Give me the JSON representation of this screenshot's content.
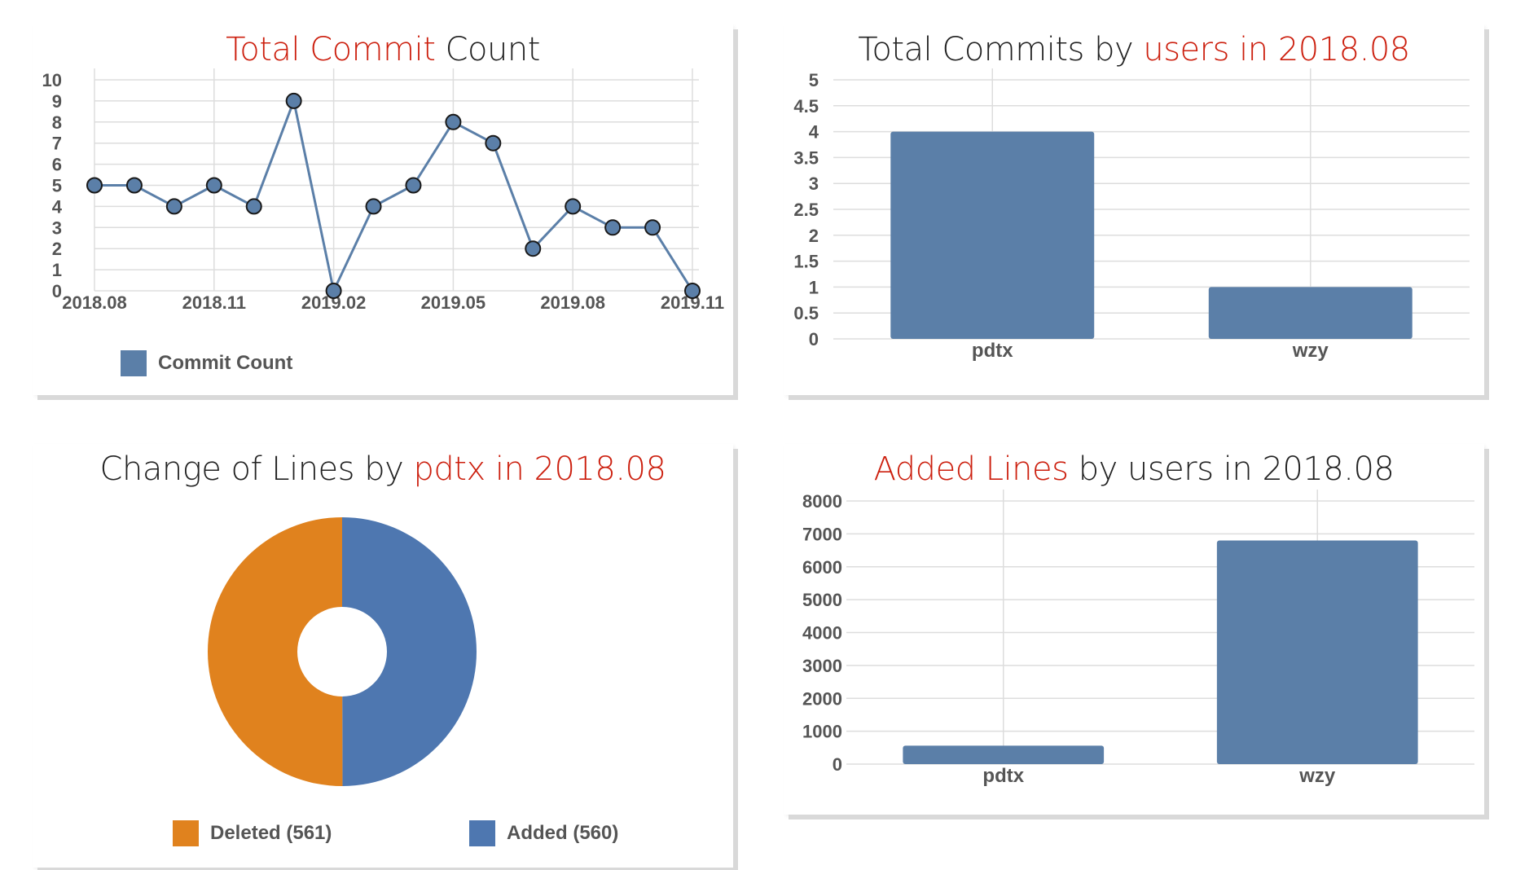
{
  "colors": {
    "series": "#5b7fa8",
    "deleted": "#e0821e",
    "added": "#4e77b0",
    "highlight": "#cc1f0e",
    "grid": "#dddddd"
  },
  "charts": {
    "commit_count": {
      "title_hl": "Total Commit",
      "title_rest": " Count",
      "legend_label": "Commit Count"
    },
    "user_commits": {
      "title_plain": "Total Commits by ",
      "title_hl": "users in 2018.08"
    },
    "line_change": {
      "title_plain": "Change of Lines by ",
      "title_hl": "pdtx in 2018.08",
      "legend_deleted": "Deleted (561)",
      "legend_added": "Added (560)"
    },
    "added_lines": {
      "title_hl": "Added Lines",
      "title_rest": " by users in 2018.08"
    }
  },
  "chart_data": [
    {
      "type": "line",
      "title": "Total Commit Count",
      "x": [
        "2018.08",
        "2018.09",
        "2018.10",
        "2018.11",
        "2018.12",
        "2019.01",
        "2019.02",
        "2019.03",
        "2019.04",
        "2019.05",
        "2019.06",
        "2019.07",
        "2019.08",
        "2019.09",
        "2019.10",
        "2019.11"
      ],
      "x_tick_labels": [
        "2018.08",
        "2018.11",
        "2019.02",
        "2019.05",
        "2019.08",
        "2019.11"
      ],
      "series": [
        {
          "name": "Commit Count",
          "values": [
            5,
            5,
            4,
            5,
            4,
            9,
            0,
            4,
            5,
            8,
            7,
            2,
            4,
            3,
            3,
            0
          ]
        }
      ],
      "ylim": [
        0,
        10
      ],
      "y_ticks": [
        0,
        1,
        2,
        3,
        4,
        5,
        6,
        7,
        8,
        9,
        10
      ],
      "grid": true,
      "legend": "bottom-left"
    },
    {
      "type": "bar",
      "title": "Total Commits by users in 2018.08",
      "categories": [
        "pdtx",
        "wzy"
      ],
      "values": [
        4,
        1
      ],
      "ylim": [
        0,
        5
      ],
      "y_ticks": [
        "0",
        "0.5",
        "1",
        "1.5",
        "2",
        "2.5",
        "3",
        "3.5",
        "4",
        "4.5",
        "5"
      ],
      "grid": true
    },
    {
      "type": "pie",
      "title": "Change of Lines by pdtx in 2018.08",
      "slices": [
        {
          "name": "Added (560)",
          "value": 560
        },
        {
          "name": "Deleted (561)",
          "value": 561
        }
      ],
      "donut": true,
      "legend": "bottom"
    },
    {
      "type": "bar",
      "title": "Added Lines by users in 2018.08",
      "categories": [
        "pdtx",
        "wzy"
      ],
      "values": [
        560,
        6800
      ],
      "ylim": [
        0,
        8000
      ],
      "y_ticks": [
        "0",
        "1000",
        "2000",
        "3000",
        "4000",
        "5000",
        "6000",
        "7000",
        "8000"
      ],
      "grid": true
    }
  ]
}
